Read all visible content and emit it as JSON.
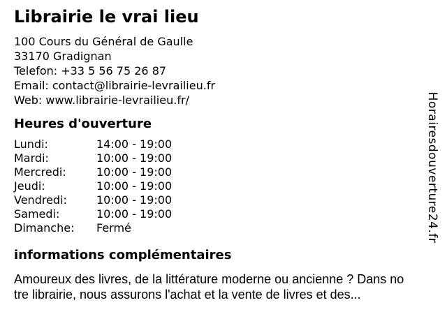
{
  "colors": {
    "background": "#ffffff",
    "text": "#000000"
  },
  "business": {
    "name": "Librairie le vrai lieu",
    "address_line1": "100 Cours du Général de Gaulle",
    "address_line2": "33170 Gradignan",
    "phone_label": "Telefon:",
    "phone_value": "+33 5 56 75 26 87",
    "email_label": "Email:",
    "email_value": "contact@librairie-levrailieu.fr",
    "web_label": "Web:",
    "web_value": "www.librairie-levrailieu.fr/"
  },
  "hours": {
    "heading": "Heures d'ouverture",
    "rows": [
      {
        "day": "Lundi:",
        "time": "14:00 - 19:00"
      },
      {
        "day": "Mardi:",
        "time": "10:00 - 19:00"
      },
      {
        "day": "Mercredi:",
        "time": "10:00 - 19:00"
      },
      {
        "day": "Jeudi:",
        "time": "10:00 - 19:00"
      },
      {
        "day": "Vendredi:",
        "time": "10:00 - 19:00"
      },
      {
        "day": "Samedi:",
        "time": "10:00 - 19:00"
      },
      {
        "day": "Dimanche:",
        "time": "Fermé"
      }
    ]
  },
  "info": {
    "heading": "informations complémentaires",
    "lines": [
      "Amoureux des livres, de la littérature moderne ou ancienne ? Dans no",
      "tre librairie, nous assurons l'achat et la vente de livres et des..."
    ]
  },
  "watermark": {
    "text": "Horairesdouverture24.fr"
  }
}
